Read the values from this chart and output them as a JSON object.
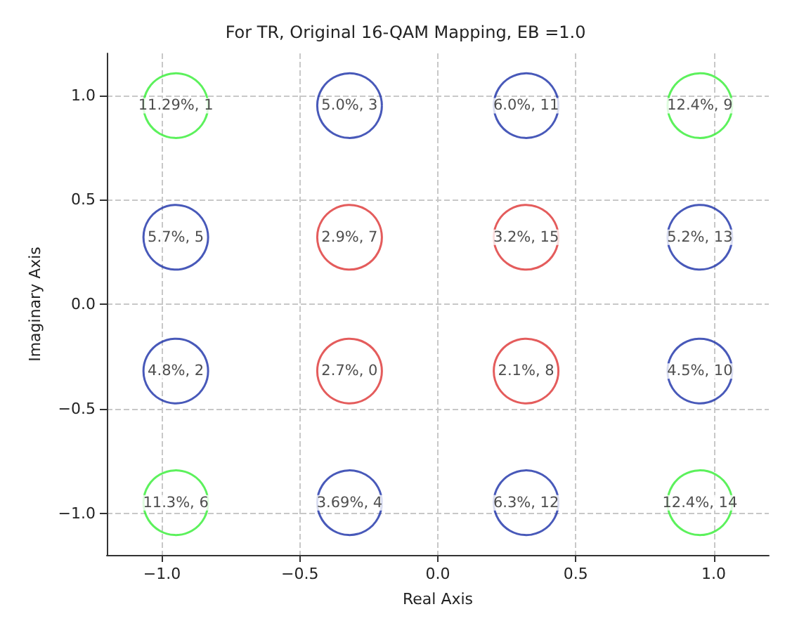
{
  "chart_data": {
    "type": "scatter",
    "title": "For TR, Original 16-QAM Mapping, EB =1.0",
    "xlabel": "Real Axis",
    "ylabel": "Imaginary Axis",
    "xlim": [
      -1.2,
      1.2
    ],
    "ylim": [
      -1.2,
      1.2
    ],
    "xticks": [
      {
        "value": -1,
        "label": "−1.0"
      },
      {
        "value": -0.5,
        "label": "−0.5"
      },
      {
        "value": 0,
        "label": "0.0"
      },
      {
        "value": 0.5,
        "label": "0.5"
      },
      {
        "value": 1,
        "label": "1.0"
      }
    ],
    "yticks": [
      {
        "value": -1,
        "label": "−1.0"
      },
      {
        "value": -0.5,
        "label": "−0.5"
      },
      {
        "value": 0,
        "label": "0.0"
      },
      {
        "value": 0.5,
        "label": "0.5"
      },
      {
        "value": 1,
        "label": "1.0"
      }
    ],
    "grid": true,
    "marker": "circle",
    "series": [
      {
        "color": "#33ee33",
        "x": [
          -0.95,
          0.95,
          -0.95,
          0.95
        ],
        "values": [
          0.95,
          0.95,
          -0.95,
          -0.95
        ],
        "value_labels": [
          "11.29%, 1",
          "12.4%, 9",
          "11.3%, 6",
          "12.4%, 14"
        ]
      },
      {
        "color": "#1a2fa8",
        "x": [
          -0.32,
          0.32,
          -0.95,
          0.95,
          -0.95,
          0.95,
          -0.32,
          0.32
        ],
        "values": [
          0.95,
          0.95,
          0.32,
          0.32,
          -0.32,
          -0.32,
          -0.95,
          -0.95
        ],
        "value_labels": [
          "5.0%, 3",
          "6.0%, 11",
          "5.7%, 5",
          "5.2%, 13",
          "4.8%, 2",
          "4.5%, 10",
          "3.69%, 4",
          "6.3%, 12"
        ]
      },
      {
        "color": "#dd3333",
        "x": [
          -0.32,
          0.32,
          -0.32,
          0.32
        ],
        "values": [
          0.32,
          0.32,
          -0.32,
          -0.32
        ],
        "value_labels": [
          "2.9%, 7",
          "3.2%, 15",
          "2.7%, 0",
          "2.1%, 8"
        ]
      }
    ]
  }
}
